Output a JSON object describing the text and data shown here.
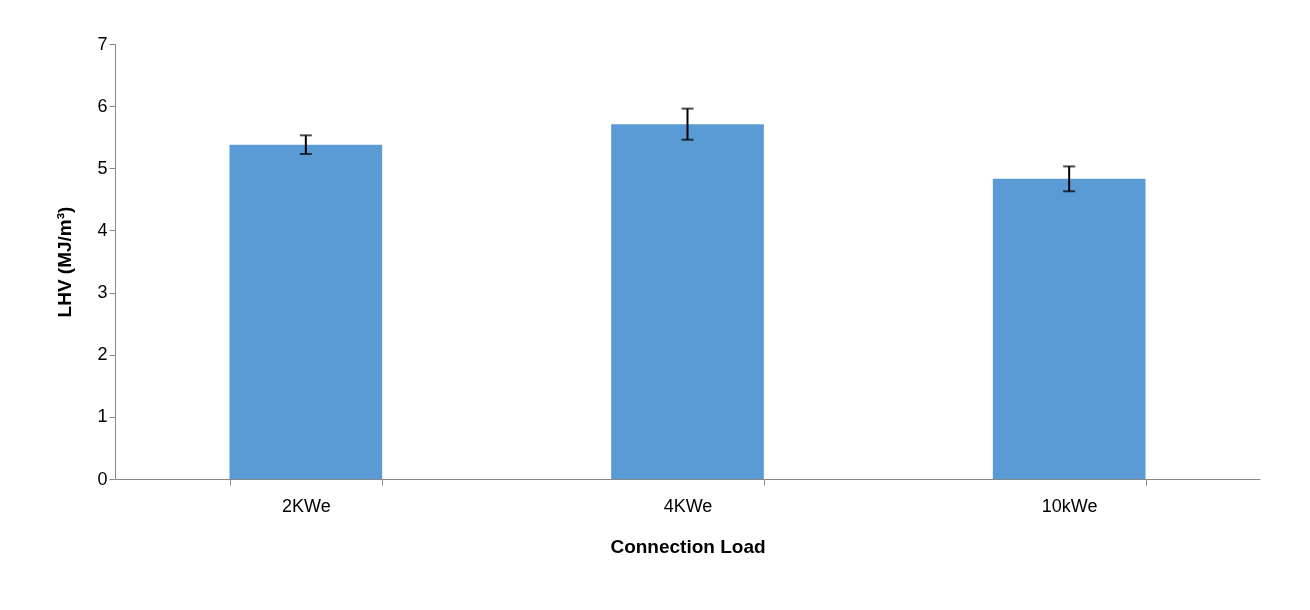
{
  "chart_data": {
    "type": "bar",
    "xlabel": "Connection Load",
    "ylabel": "LHV (MJ/m³)",
    "categories": [
      "2KWe",
      "4KWe",
      "10kWe"
    ],
    "series": [
      {
        "color": "#5b9bd5",
        "values": [
          5.38,
          5.71,
          4.83
        ],
        "errors": [
          0.15,
          0.25,
          0.2
        ]
      }
    ],
    "ylim": [
      0,
      7
    ],
    "yticks": [
      0,
      1,
      2,
      3,
      4,
      5,
      6,
      7
    ],
    "grid": false
  }
}
